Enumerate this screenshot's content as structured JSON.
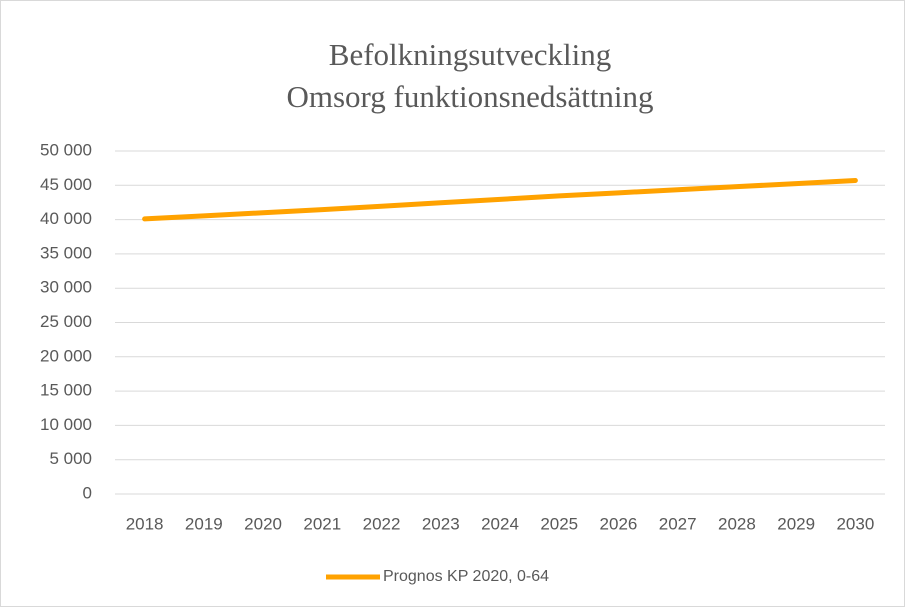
{
  "chart_data": {
    "type": "line",
    "title": [
      "Befolkningsutveckling",
      "Omsorg funktionsnedsättning"
    ],
    "categories": [
      "2018",
      "2019",
      "2020",
      "2021",
      "2022",
      "2023",
      "2024",
      "2025",
      "2026",
      "2027",
      "2028",
      "2029",
      "2030"
    ],
    "series": [
      {
        "name": "Prognos KP 2020, 0-64",
        "color": "#ffa200",
        "values": [
          40100,
          40550,
          41000,
          41450,
          41950,
          42450,
          42950,
          43450,
          43900,
          44350,
          44800,
          45250,
          45700
        ]
      }
    ],
    "ylim": [
      0,
      50000
    ],
    "yticks": [
      0,
      {
        "value": 5000,
        "label": "5 000"
      },
      {
        "value": 10000,
        "label": "10 000"
      },
      {
        "value": 15000,
        "label": "15 000"
      },
      {
        "value": 20000,
        "label": "20 000"
      },
      {
        "value": 25000,
        "label": "25 000"
      },
      {
        "value": 30000,
        "label": "30 000"
      },
      {
        "value": 35000,
        "label": "35 000"
      },
      {
        "value": 40000,
        "label": "40 000"
      },
      {
        "value": 45000,
        "label": "45 000"
      },
      {
        "value": 50000,
        "label": "50 000"
      }
    ],
    "grid": true,
    "legend": "bottom"
  }
}
